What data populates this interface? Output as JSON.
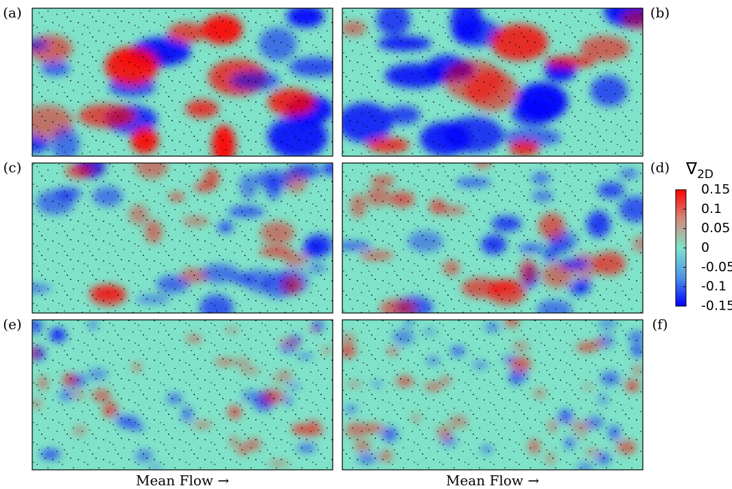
{
  "panels": [
    {
      "label": "(a)"
    },
    {
      "label": "(b)"
    },
    {
      "label": "(c)"
    },
    {
      "label": "(d)"
    },
    {
      "label": "(e)"
    },
    {
      "label": "(f)"
    }
  ],
  "x_labels": [
    "Mean Flow →",
    "Mean Flow →"
  ],
  "colorbar": {
    "title": "∇",
    "title_subscript": "2D",
    "lim": [
      -0.15,
      0.15
    ],
    "ticks": [
      0.15,
      0.1,
      0.05,
      0,
      -0.05,
      -0.1,
      -0.15
    ],
    "colors": [
      "#0000ff",
      "#4f95e6",
      "#7fe3c9",
      "#d4897e",
      "#ff0000"
    ]
  }
}
